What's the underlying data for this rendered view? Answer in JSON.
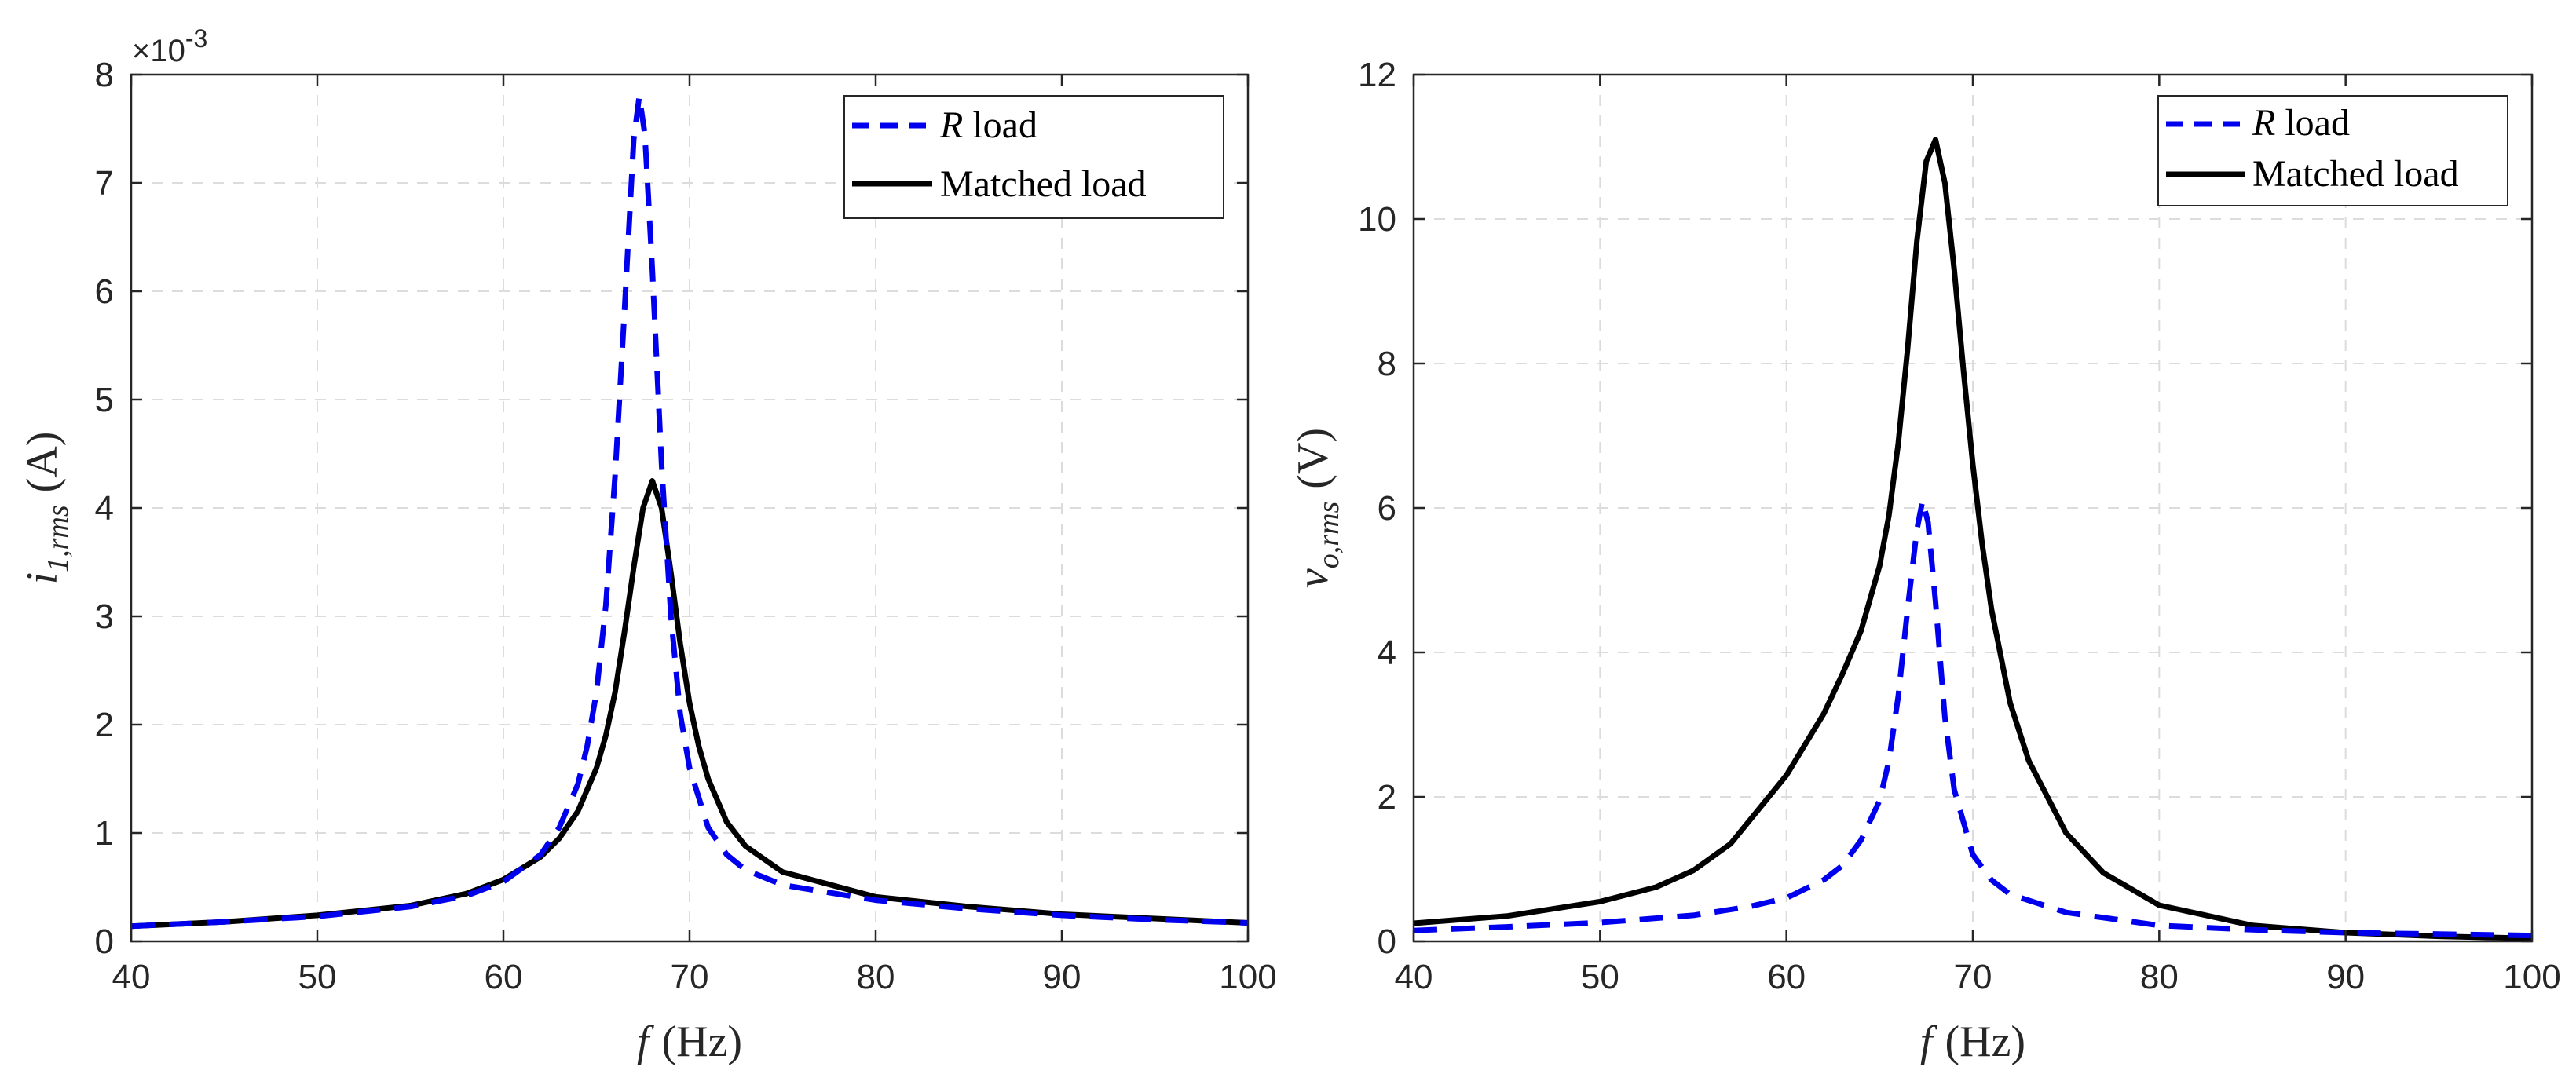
{
  "figure": {
    "panel_count": 2
  },
  "colors": {
    "r_load": "#0000ee",
    "matched_load": "#000000"
  },
  "chart_data": [
    {
      "type": "line",
      "xlabel": "f",
      "xlabel_unit": "(Hz)",
      "ylabel_main": "i",
      "ylabel_sub": "1,rms",
      "ylabel_unit": "(A)",
      "y_exponent": "×10",
      "y_exponent_power": "-3",
      "xlim": [
        40,
        100
      ],
      "ylim": [
        0,
        8
      ],
      "xticks": [
        40,
        50,
        60,
        70,
        80,
        90,
        100
      ],
      "yticks": [
        0,
        1,
        2,
        3,
        4,
        5,
        6,
        7,
        8
      ],
      "grid": true,
      "legend_position": "top-right",
      "series": [
        {
          "name_italic": "R",
          "name": " load",
          "style": "dashed",
          "x": [
            40,
            45,
            50,
            55,
            58,
            60,
            62,
            63,
            64,
            64.5,
            65,
            65.5,
            66,
            66.5,
            67,
            67.3,
            67.6,
            68,
            68.5,
            69,
            69.5,
            70,
            71,
            72,
            73,
            75,
            80,
            85,
            90,
            95,
            100
          ],
          "y": [
            0.14,
            0.18,
            0.23,
            0.32,
            0.42,
            0.55,
            0.8,
            1.05,
            1.45,
            1.8,
            2.3,
            3.1,
            4.3,
            5.8,
            7.4,
            7.8,
            7.45,
            6.2,
            4.4,
            3.0,
            2.1,
            1.6,
            1.05,
            0.8,
            0.66,
            0.52,
            0.38,
            0.3,
            0.24,
            0.2,
            0.17
          ]
        },
        {
          "name": "Matched load",
          "style": "solid",
          "x": [
            40,
            45,
            50,
            55,
            58,
            60,
            62,
            63,
            64,
            65,
            65.5,
            66,
            66.5,
            67,
            67.5,
            68,
            68.5,
            69,
            69.5,
            70,
            70.5,
            71,
            72,
            73,
            75,
            80,
            85,
            90,
            95,
            100
          ],
          "y": [
            0.14,
            0.18,
            0.24,
            0.33,
            0.44,
            0.57,
            0.78,
            0.95,
            1.2,
            1.6,
            1.9,
            2.3,
            2.85,
            3.45,
            4.0,
            4.25,
            4.0,
            3.4,
            2.75,
            2.2,
            1.8,
            1.5,
            1.1,
            0.88,
            0.64,
            0.41,
            0.32,
            0.25,
            0.21,
            0.17
          ]
        }
      ]
    },
    {
      "type": "line",
      "xlabel": "f",
      "xlabel_unit": "(Hz)",
      "ylabel_main": "v",
      "ylabel_sub": "o,rms",
      "ylabel_unit": "(V)",
      "xlim": [
        40,
        100
      ],
      "ylim": [
        0,
        12
      ],
      "xticks": [
        40,
        50,
        60,
        70,
        80,
        90,
        100
      ],
      "yticks": [
        0,
        2,
        4,
        6,
        8,
        10,
        12
      ],
      "grid": true,
      "legend_position": "top-right",
      "series": [
        {
          "name_italic": "R",
          "name": " load",
          "style": "dashed",
          "x": [
            40,
            45,
            50,
            55,
            58,
            60,
            62,
            63,
            64,
            65,
            65.5,
            66,
            66.5,
            67,
            67.3,
            67.6,
            68,
            68.5,
            69,
            70,
            71,
            72,
            75,
            80,
            85,
            90,
            95,
            100
          ],
          "y": [
            0.15,
            0.2,
            0.26,
            0.36,
            0.48,
            0.6,
            0.85,
            1.05,
            1.4,
            1.95,
            2.5,
            3.4,
            4.6,
            5.7,
            6.1,
            5.8,
            4.7,
            3.1,
            2.1,
            1.2,
            0.85,
            0.65,
            0.4,
            0.22,
            0.16,
            0.12,
            0.1,
            0.08
          ]
        },
        {
          "name": "Matched load",
          "style": "solid",
          "x": [
            40,
            45,
            50,
            53,
            55,
            57,
            60,
            62,
            63,
            64,
            65,
            65.5,
            66,
            66.5,
            67,
            67.5,
            68,
            68.5,
            69,
            69.5,
            70,
            70.5,
            71,
            72,
            73,
            75,
            77,
            80,
            85,
            90,
            95,
            100
          ],
          "y": [
            0.25,
            0.35,
            0.55,
            0.75,
            0.98,
            1.35,
            2.3,
            3.15,
            3.7,
            4.3,
            5.2,
            5.9,
            6.9,
            8.2,
            9.7,
            10.8,
            11.1,
            10.5,
            9.3,
            7.9,
            6.6,
            5.5,
            4.6,
            3.3,
            2.5,
            1.5,
            0.95,
            0.5,
            0.22,
            0.12,
            0.07,
            0.04
          ]
        }
      ]
    }
  ]
}
